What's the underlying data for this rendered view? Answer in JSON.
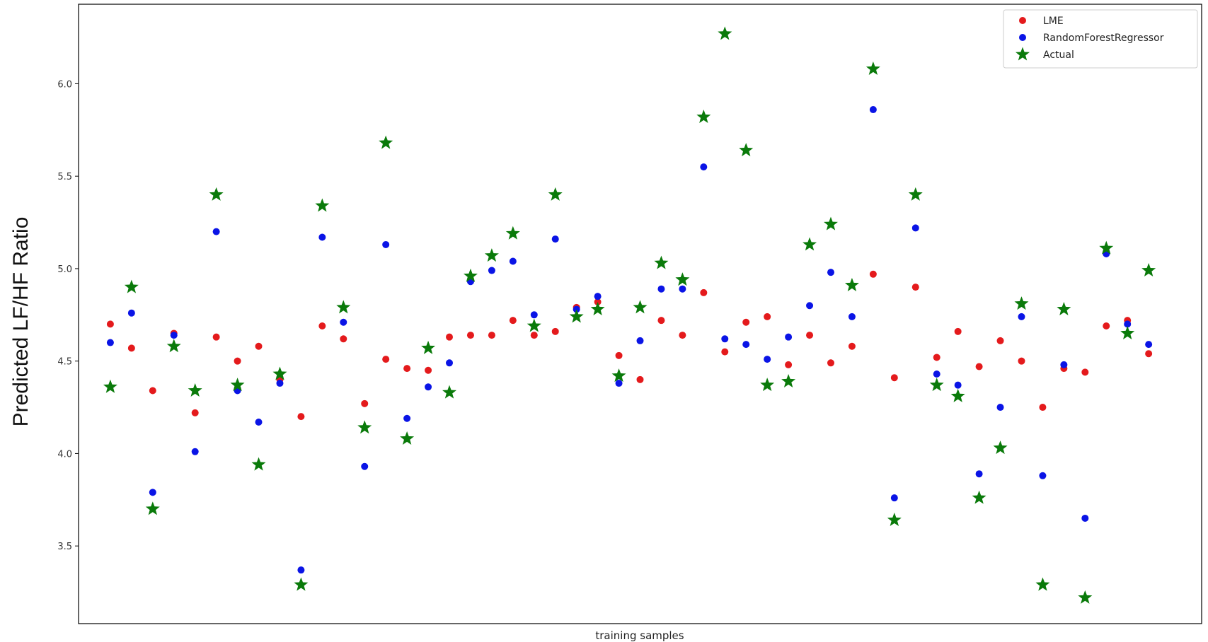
{
  "chart_data": {
    "type": "scatter",
    "xlabel": "training samples",
    "ylabel": "Predicted LF/HF Ratio",
    "ylim": [
      3.08,
      6.43
    ],
    "xlim": [
      -1.5,
      51.5
    ],
    "yticks": [
      "3.5",
      "4.0",
      "4.5",
      "5.0",
      "5.5",
      "6.0"
    ],
    "yticks_values": [
      3.5,
      4.0,
      4.5,
      5.0,
      5.5,
      6.0
    ],
    "legend_position": "top-right",
    "grid": false,
    "series": [
      {
        "name": "LME",
        "marker": "circle",
        "color": "#e41a1c",
        "values": [
          4.7,
          4.57,
          4.34,
          4.65,
          4.22,
          4.63,
          4.5,
          4.58,
          4.4,
          4.2,
          4.69,
          4.62,
          4.27,
          4.51,
          4.46,
          4.45,
          4.63,
          4.64,
          4.64,
          4.72,
          4.64,
          4.66,
          4.79,
          4.82,
          4.53,
          4.4,
          4.72,
          4.64,
          4.87,
          4.55,
          4.71,
          4.74,
          4.48,
          4.64,
          4.49,
          4.58,
          4.97,
          4.41,
          4.9,
          4.52,
          4.66,
          4.47,
          4.61,
          4.5,
          4.25,
          4.46,
          4.44,
          4.69,
          4.72,
          4.54
        ]
      },
      {
        "name": "RandomForestRegressor",
        "marker": "circle",
        "color": "#0a14e6",
        "values": [
          4.6,
          4.76,
          3.79,
          4.64,
          4.01,
          5.2,
          4.34,
          4.17,
          4.38,
          3.37,
          5.17,
          4.71,
          3.93,
          5.13,
          4.19,
          4.36,
          4.49,
          4.93,
          4.99,
          5.04,
          4.75,
          5.16,
          4.78,
          4.85,
          4.38,
          4.61,
          4.89,
          4.89,
          5.55,
          4.62,
          4.59,
          4.51,
          4.63,
          4.8,
          4.98,
          4.74,
          5.86,
          3.76,
          5.22,
          4.43,
          4.37,
          3.89,
          4.25,
          4.74,
          3.88,
          4.48,
          3.65,
          5.08,
          4.7,
          4.59
        ]
      },
      {
        "name": "Actual",
        "marker": "star",
        "color": "#0a7a0a",
        "values": [
          4.36,
          4.9,
          3.7,
          4.58,
          4.34,
          5.4,
          4.37,
          3.94,
          4.43,
          3.29,
          5.34,
          4.79,
          4.14,
          5.68,
          4.08,
          4.57,
          4.33,
          4.96,
          5.07,
          5.19,
          4.69,
          5.4,
          4.74,
          4.78,
          4.42,
          4.79,
          5.03,
          4.94,
          5.82,
          6.27,
          5.64,
          4.37,
          4.39,
          5.13,
          5.24,
          4.91,
          6.08,
          3.64,
          5.4,
          4.37,
          4.31,
          3.76,
          4.03,
          4.81,
          3.29,
          4.78,
          3.22,
          5.11,
          4.65,
          4.99
        ]
      }
    ]
  }
}
